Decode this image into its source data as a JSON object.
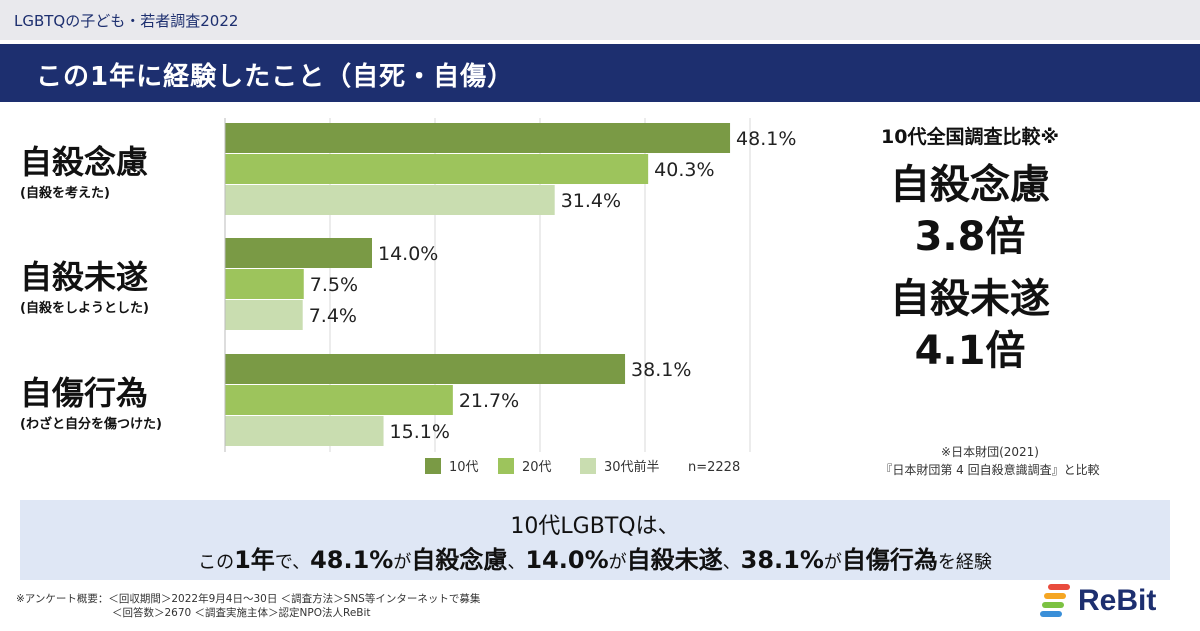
{
  "header": {
    "survey_name": "LGBTQの子ども・若者調査2022",
    "title": "この1年に経験したこと（自死・自傷）"
  },
  "colors": {
    "series_10s": "#7a9a45",
    "series_20s": "#9dc45c",
    "series_30s": "#c9ddb0",
    "title_bar": "#1d2f6f",
    "summary_bg": "#dfe7f5"
  },
  "chart_data": {
    "type": "bar",
    "orientation": "horizontal",
    "categories": [
      "自殺念慮",
      "自殺未遂",
      "自傷行為"
    ],
    "category_subtitles": [
      "(自殺を考えた)",
      "(自殺をしようとした)",
      "(わざと自分を傷つけた)"
    ],
    "series": [
      {
        "name": "10代",
        "values": [
          48.1,
          14.0,
          38.1
        ]
      },
      {
        "name": "20代",
        "values": [
          40.3,
          7.5,
          21.7
        ]
      },
      {
        "name": "30代前半",
        "values": [
          31.4,
          7.4,
          15.1
        ]
      }
    ],
    "value_labels": [
      [
        "48.1%",
        "14.0%",
        "38.1%"
      ],
      [
        "40.3%",
        "7.5%",
        "21.7%"
      ],
      [
        "31.4%",
        "7.4%",
        "15.1%"
      ]
    ],
    "sample_note": "n=2228",
    "xlim": [
      0,
      50
    ],
    "grid": true,
    "legend": "bottom"
  },
  "comparison": {
    "heading": "10代全国調査比較※",
    "item1_label": "自殺念慮",
    "item1_value": "3.8倍",
    "item2_label": "自殺未遂",
    "item2_value": "4.1倍",
    "source_line1": "※日本財団(2021)",
    "source_line2": "『日本財団第 4 回自殺意識調査』と比較"
  },
  "summary": {
    "line1": "10代LGBTQは、",
    "line2_parts": [
      "この",
      "1年",
      "で、",
      "48.1%",
      "が",
      "自殺念慮",
      "、",
      "14.0%",
      "が",
      "自殺未遂",
      "、",
      "38.1%",
      "が",
      "自傷行為",
      "を経験"
    ]
  },
  "footnote": {
    "line1": "※アンケート概要：＜回収期間＞2022年9月4日〜30日 ＜調査方法＞SNS等インターネットで募集",
    "line2": "＜回答数＞2670 ＜調査実施主体＞認定NPO法人ReBit"
  },
  "logo": {
    "text": "ReBit",
    "icon": "rebit-stripes-icon"
  }
}
